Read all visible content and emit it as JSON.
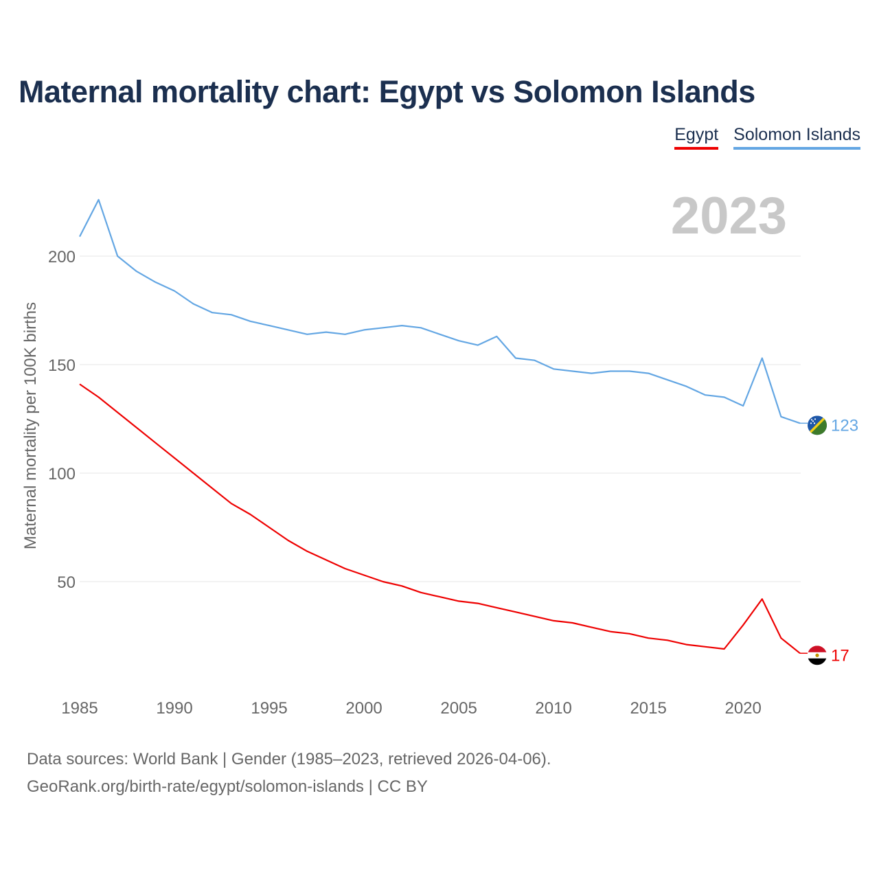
{
  "title": "Maternal mortality chart: Egypt vs Solomon Islands",
  "legend": {
    "egypt": "Egypt",
    "solomon": "Solomon Islands"
  },
  "year_label": "2023",
  "footer": {
    "line1": "Data sources: World Bank | Gender (1985–2023, retrieved 2026-04-06).",
    "line2": "GeoRank.org/birth-rate/egypt/solomon-islands | CC BY"
  },
  "colors": {
    "egypt": "#ee0000",
    "solomon": "#63a6e3",
    "title": "#1b2f4f",
    "grid": "#e6e6e6",
    "axis_text": "#666666",
    "year": "#c8c8c8"
  },
  "chart_data": {
    "type": "line",
    "title": "Maternal mortality chart: Egypt vs Solomon Islands",
    "xlabel": "",
    "ylabel": "Maternal mortality per 100K births",
    "xlim": [
      1985,
      2023
    ],
    "ylim": [
      0,
      235
    ],
    "x_ticks": [
      1985,
      1990,
      1995,
      2000,
      2005,
      2010,
      2015,
      2020
    ],
    "y_ticks": [
      50,
      100,
      150,
      200
    ],
    "grid": true,
    "legend_position": "top-right",
    "x": [
      1985,
      1986,
      1987,
      1988,
      1989,
      1990,
      1991,
      1992,
      1993,
      1994,
      1995,
      1996,
      1997,
      1998,
      1999,
      2000,
      2001,
      2002,
      2003,
      2004,
      2005,
      2006,
      2007,
      2008,
      2009,
      2010,
      2011,
      2012,
      2013,
      2014,
      2015,
      2016,
      2017,
      2018,
      2019,
      2020,
      2021,
      2022,
      2023
    ],
    "series": [
      {
        "name": "Egypt",
        "end_label": "17",
        "values": [
          141,
          135,
          128,
          121,
          114,
          107,
          100,
          93,
          86,
          81,
          75,
          69,
          64,
          60,
          56,
          53,
          50,
          48,
          45,
          43,
          41,
          40,
          38,
          36,
          34,
          32,
          31,
          29,
          27,
          26,
          24,
          23,
          21,
          20,
          19,
          30,
          42,
          24,
          17
        ]
      },
      {
        "name": "Solomon Islands",
        "end_label": "123",
        "values": [
          209,
          226,
          200,
          193,
          188,
          184,
          178,
          174,
          173,
          170,
          168,
          166,
          164,
          165,
          164,
          166,
          167,
          168,
          167,
          164,
          161,
          159,
          163,
          153,
          152,
          148,
          147,
          146,
          147,
          147,
          146,
          143,
          140,
          136,
          135,
          131,
          153,
          126,
          123
        ]
      }
    ]
  }
}
